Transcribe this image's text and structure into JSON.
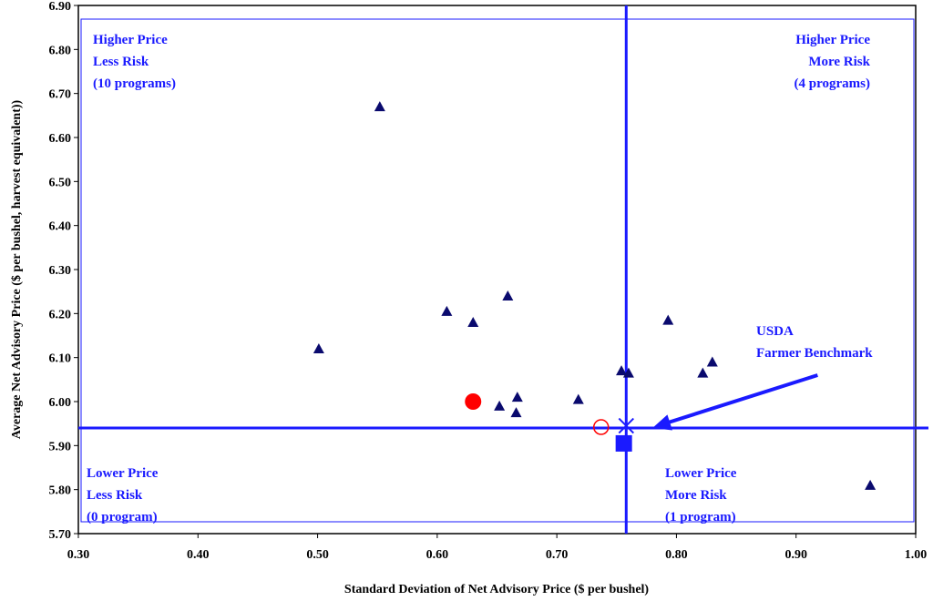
{
  "chart_data": {
    "type": "scatter",
    "xlabel": "Standard Deviation of Net Advisory Price ($ per bushel)",
    "ylabel": "Average Net Advisory Price ($ per bushel, harvest equivalent))",
    "xlim": [
      0.3,
      1.0
    ],
    "ylim": [
      5.7,
      6.9
    ],
    "x_ticks": [
      "0.30",
      "0.40",
      "0.50",
      "0.60",
      "0.70",
      "0.80",
      "0.90",
      "1.00"
    ],
    "y_ticks": [
      "5.70",
      "5.80",
      "5.90",
      "6.00",
      "6.10",
      "6.20",
      "6.30",
      "6.40",
      "6.50",
      "6.60",
      "6.70",
      "6.80",
      "6.90"
    ],
    "grid": false,
    "reference_lines": {
      "x": 0.758,
      "y": 5.94,
      "color": "#1a1aff"
    },
    "quadrants": {
      "upper_left": [
        "Higher Price",
        "Less Risk",
        "(10 programs)"
      ],
      "upper_right": [
        "Higher Price",
        "More Risk",
        "(4 programs)"
      ],
      "lower_left": [
        "Lower Price",
        "Less Risk",
        "(0 program)"
      ],
      "lower_right": [
        "Lower Price",
        "More Risk",
        "(1 program)"
      ]
    },
    "annotation": {
      "lines": [
        "USDA",
        "Farmer Benchmark"
      ],
      "arrow_from": [
        0.918,
        6.06
      ],
      "arrow_to": [
        0.78,
        5.94
      ]
    },
    "series": [
      {
        "marker": "triangle",
        "color": "#0a0a6e",
        "points": [
          {
            "x": 0.501,
            "y": 6.12
          },
          {
            "x": 0.552,
            "y": 6.67
          },
          {
            "x": 0.608,
            "y": 6.205
          },
          {
            "x": 0.63,
            "y": 6.18
          },
          {
            "x": 0.659,
            "y": 6.24
          },
          {
            "x": 0.652,
            "y": 5.99
          },
          {
            "x": 0.666,
            "y": 5.975
          },
          {
            "x": 0.667,
            "y": 6.01
          },
          {
            "x": 0.718,
            "y": 6.005
          },
          {
            "x": 0.754,
            "y": 6.07
          },
          {
            "x": 0.76,
            "y": 6.065
          },
          {
            "x": 0.793,
            "y": 6.185
          },
          {
            "x": 0.822,
            "y": 6.065
          },
          {
            "x": 0.83,
            "y": 6.09
          },
          {
            "x": 0.962,
            "y": 5.81
          }
        ]
      },
      {
        "marker": "circle-filled",
        "color": "#ff0000",
        "points": [
          {
            "x": 0.63,
            "y": 6.0
          }
        ]
      },
      {
        "marker": "circle-open",
        "color": "#ff0000",
        "points": [
          {
            "x": 0.737,
            "y": 5.942
          }
        ]
      },
      {
        "marker": "star",
        "color": "#1a1aff",
        "points": [
          {
            "x": 0.758,
            "y": 5.945
          }
        ]
      },
      {
        "marker": "square",
        "color": "#1a1aff",
        "points": [
          {
            "x": 0.756,
            "y": 5.905
          }
        ]
      }
    ]
  }
}
